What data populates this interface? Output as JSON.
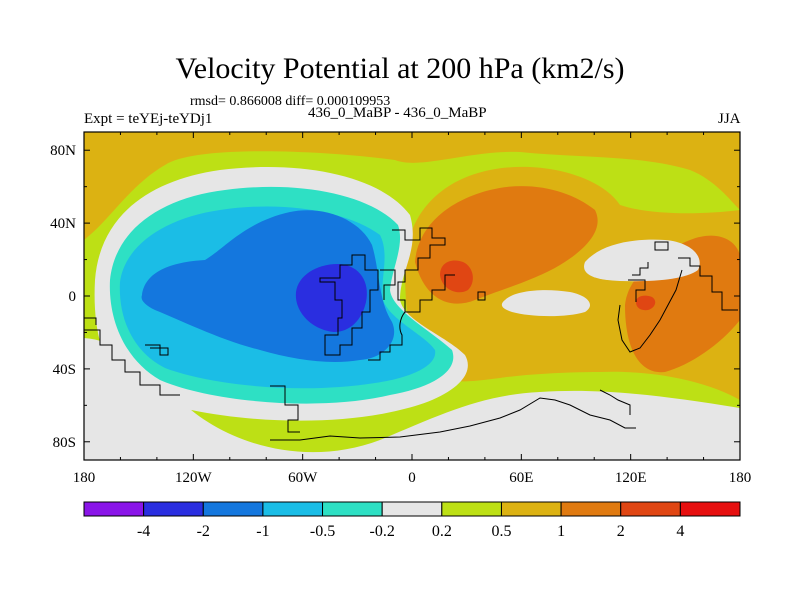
{
  "header": {
    "title": "Velocity Potential at 200 hPa (km2/s)",
    "stats": "rmsd= 0.866008 diff= 0.000109953",
    "expt": "Expt = teYEj-teYDj1",
    "cases": "436_0_MaBP - 436_0_MaBP",
    "season": "JJA"
  },
  "colorbar": {
    "colors": [
      "#8a15e8",
      "#2a2ee0",
      "#1477de",
      "#1bbde6",
      "#2ee0c4",
      "#e6e6e6",
      "#bde015",
      "#dcb212",
      "#e07a10",
      "#e04613",
      "#e60f0f"
    ],
    "labels": [
      "-4",
      "-2",
      "-1",
      "-0.5",
      "-0.2",
      "0.2",
      "0.5",
      "1",
      "2",
      "4"
    ]
  },
  "chart_data": {
    "type": "contour-map",
    "title": "Velocity Potential at 200 hPa (km2/s)",
    "units": "km2/s",
    "levels": [
      -4,
      -2,
      -1,
      -0.5,
      -0.2,
      0.2,
      0.5,
      1,
      2,
      4
    ],
    "x_ticks": [
      -180,
      -120,
      -60,
      0,
      60,
      120,
      180
    ],
    "x_tick_labels": [
      "180",
      "120W",
      "60W",
      "0",
      "60E",
      "120E",
      "180"
    ],
    "y_ticks": [
      80,
      40,
      0,
      -40,
      -80
    ],
    "y_tick_labels": [
      "80N",
      "40N",
      "0",
      "40S",
      "80S"
    ],
    "xlim": [
      -180,
      180
    ],
    "ylim": [
      -90,
      90
    ],
    "field_features": [
      {
        "value_range": "-2 to -4",
        "center_lon": -40,
        "center_lat": 0
      },
      {
        "value_range": "2 to 4",
        "center_lon": 25,
        "center_lat": 15
      },
      {
        "value_range": "1 to 2",
        "center_lon": 135,
        "center_lat": -5
      }
    ]
  }
}
